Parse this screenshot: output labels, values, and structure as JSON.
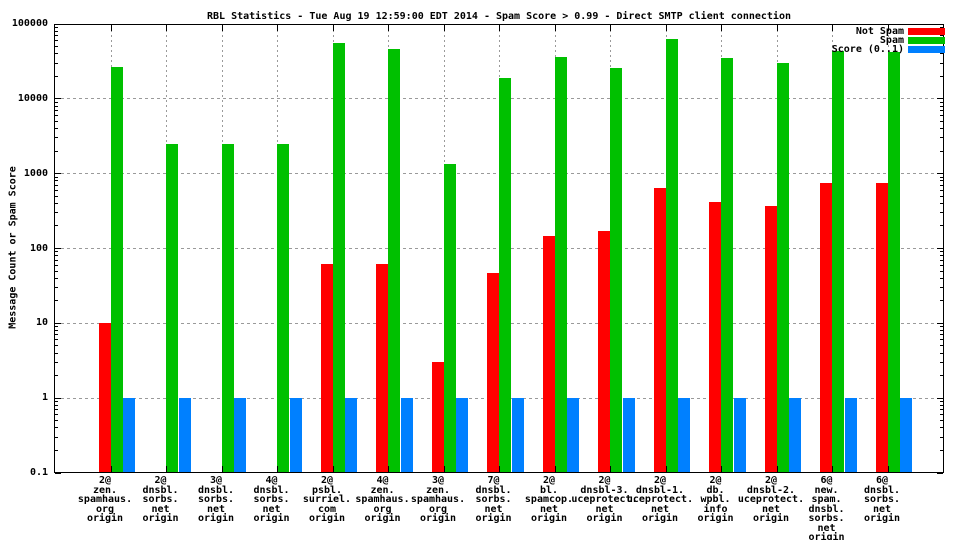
{
  "title": "RBL Statistics - Tue Aug 19 12:59:00 EDT 2014 - Spam Score > 0.99 - Direct SMTP client connection",
  "ylabel": "Message Count or Spam Score",
  "colors": {
    "not_spam": "#ff0000",
    "spam": "#00c000",
    "score": "#0080ff",
    "grid": "#9a9a9a",
    "border": "#000000",
    "background": "#ffffff"
  },
  "legend": {
    "position": "top-right",
    "entries": [
      {
        "label": "Not Spam",
        "color": "#ff0000"
      },
      {
        "label": "Spam",
        "color": "#00c000"
      },
      {
        "label": "Score (0..1)",
        "color": "#0080ff"
      }
    ]
  },
  "chart_data": {
    "type": "bar",
    "y_scale": "log",
    "ylim": [
      0.1,
      100000
    ],
    "ytick_labels": [
      "0.1",
      "1",
      "10",
      "100",
      "1000",
      "10000",
      "100000"
    ],
    "grid": true,
    "legend_position": "top-right",
    "title": "RBL Statistics - Tue Aug 19 12:59:00 EDT 2014 - Spam Score > 0.99 - Direct SMTP client connection",
    "xlabel": "",
    "ylabel": "Message Count or Spam Score",
    "categories": [
      "2@ zen.spamhaus.org origin",
      "2@ dnsbl.sorbs.net origin",
      "3@ dnsbl.sorbs.net origin",
      "4@ dnsbl.sorbs.net origin",
      "2@ psbl.surriel.com origin",
      "4@ zen.spamhaus.org origin",
      "3@ zen.spamhaus.org origin",
      "7@ dnsbl.sorbs.net origin",
      "2@ bl.spamcop.net origin",
      "2@ dnsbl-3.uceprotect.net origin",
      "2@ dnsbl-1.uceprotect.net origin",
      "2@ db.wpbl.info origin",
      "2@ dnsbl-2.uceprotect.net origin",
      "6@ new.spam.dnsbl.sorbs.net origin",
      "6@ dnsbl.sorbs.net origin"
    ],
    "category_lines": [
      [
        "2@",
        "zen.",
        "spamhaus.",
        "org",
        "origin"
      ],
      [
        "2@",
        "dnsbl.",
        "sorbs.",
        "net",
        "origin"
      ],
      [
        "3@",
        "dnsbl.",
        "sorbs.",
        "net",
        "origin"
      ],
      [
        "4@",
        "dnsbl.",
        "sorbs.",
        "net",
        "origin"
      ],
      [
        "2@",
        "psbl.",
        "surriel.",
        "com",
        "origin"
      ],
      [
        "4@",
        "zen.",
        "spamhaus.",
        "org",
        "origin"
      ],
      [
        "3@",
        "zen.",
        "spamhaus.",
        "org",
        "origin"
      ],
      [
        "7@",
        "dnsbl.",
        "sorbs.",
        "net",
        "origin"
      ],
      [
        "2@",
        "bl.",
        "spamcop.",
        "net",
        "origin"
      ],
      [
        "2@",
        "dnsbl-3.",
        "uceprotect.",
        "net",
        "origin"
      ],
      [
        "2@",
        "dnsbl-1.",
        "uceprotect.",
        "net",
        "origin"
      ],
      [
        "2@",
        "db.",
        "wpbl.",
        "info",
        "origin"
      ],
      [
        "2@",
        "dnsbl-2.",
        "uceprotect.",
        "net",
        "origin"
      ],
      [
        "6@",
        "new.",
        "spam.",
        "dnsbl.",
        "sorbs.",
        "net",
        "origin"
      ],
      [
        "6@",
        "dnsbl.",
        "sorbs.",
        "net",
        "origin"
      ]
    ],
    "series": [
      {
        "name": "Not Spam",
        "color": "#ff0000",
        "values": [
          10,
          0,
          0,
          0,
          62,
          62,
          3,
          47,
          145,
          172,
          640,
          420,
          370,
          750,
          750
        ]
      },
      {
        "name": "Spam",
        "color": "#00c000",
        "values": [
          27000,
          2500,
          2500,
          2500,
          56000,
          46000,
          1350,
          19000,
          36000,
          26000,
          64000,
          35000,
          30000,
          44000,
          42000
        ]
      },
      {
        "name": "Score (0..1)",
        "color": "#0080ff",
        "values": [
          1,
          1,
          1,
          1,
          1,
          1,
          1,
          1,
          1,
          1,
          1,
          1,
          1,
          1,
          1
        ]
      }
    ]
  }
}
